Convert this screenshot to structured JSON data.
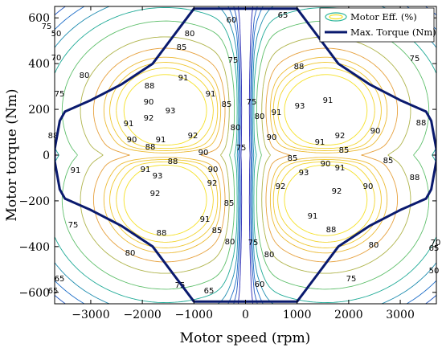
{
  "chart_data": {
    "type": "contour",
    "xlabel": "Motor speed (rpm)",
    "ylabel": "Motor torque (Nm)",
    "xlim": [
      -3700,
      3700
    ],
    "ylim": [
      -650,
      650
    ],
    "x_ticks": [
      -3000,
      -2000,
      -1000,
      0,
      1000,
      2000,
      3000
    ],
    "y_ticks": [
      -600,
      -400,
      -200,
      0,
      200,
      400,
      600
    ],
    "x_tick_labels": [
      "−3000",
      "−2000",
      "−1000",
      "0",
      "1000",
      "2000",
      "3000"
    ],
    "y_tick_labels": [
      "−600",
      "−400",
      "−200",
      "0",
      "200",
      "400",
      "600"
    ],
    "grid": false,
    "legend": {
      "placement": "top-right",
      "entries": [
        "Motor Eff. (%)",
        "Max. Torque (Nm)"
      ]
    },
    "contour_levels": [
      50,
      60,
      65,
      70,
      75,
      80,
      85,
      88,
      90,
      91,
      92,
      93
    ],
    "contour_label_values": [
      "50",
      "60",
      "65",
      "70",
      "75",
      "80",
      "85",
      "88",
      "90",
      "91",
      "92",
      "93"
    ],
    "max_torque_envelope": {
      "x": [
        0,
        1000,
        1400,
        1800,
        2400,
        3000,
        3500,
        3600,
        3700,
        3700,
        3600,
        3500,
        3000,
        2400,
        1800,
        1400,
        1000,
        0
      ],
      "y": [
        640,
        640,
        520,
        400,
        310,
        240,
        190,
        150,
        25,
        -25,
        -150,
        -190,
        -240,
        -310,
        -400,
        -520,
        -640,
        -640
      ]
    },
    "colors": {
      "max_torque": "#0a1a6e",
      "contour_low": "#2a3cc8",
      "contour_mid": "#2cb59a",
      "contour_high": "#f5e020"
    }
  }
}
